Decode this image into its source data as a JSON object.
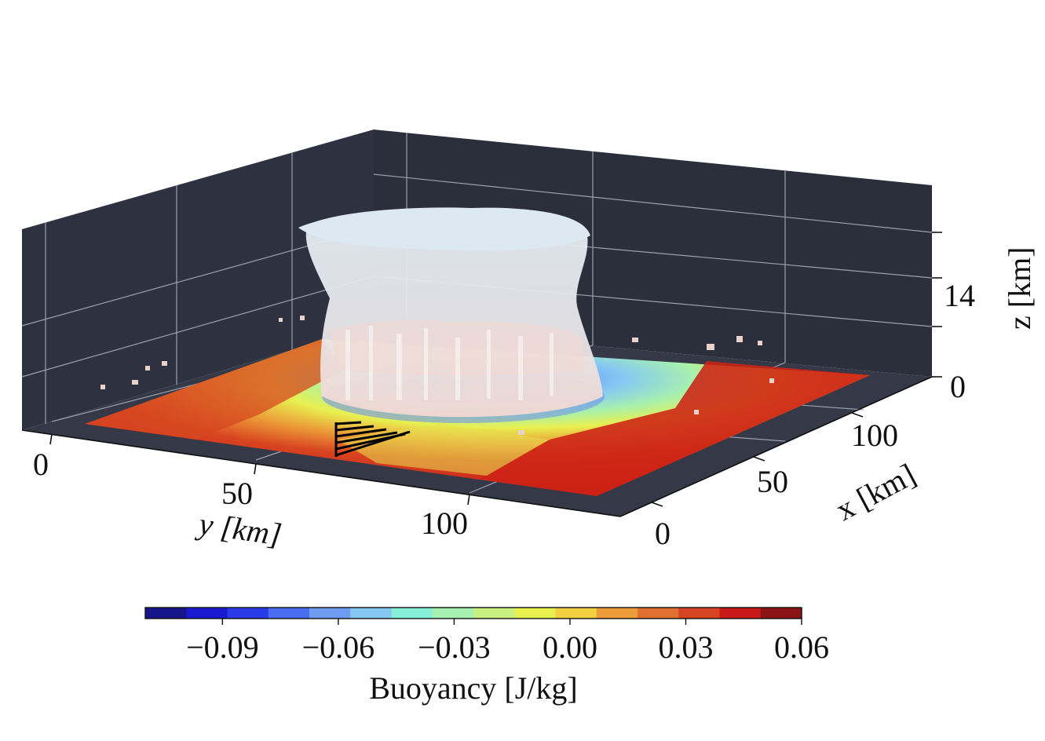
{
  "chart_data": {
    "type": "3d-surface-with-isosurface",
    "x_axis": {
      "label": "x [km]",
      "ticks": [
        0,
        50,
        100
      ]
    },
    "y_axis": {
      "label": "y [km]",
      "ticks": [
        0,
        50,
        100
      ]
    },
    "z_axis": {
      "label": "z [km]",
      "ticks": [
        0,
        14
      ]
    },
    "colorbar": {
      "label": "Buoyancy [J/kg]",
      "tick_values": [
        -0.09,
        -0.06,
        -0.03,
        0.0,
        0.03,
        0.06
      ],
      "tick_labels": [
        "−0.09",
        "−0.06",
        "−0.03",
        "0.00",
        "0.03",
        "0.06"
      ],
      "range": [
        -0.11,
        0.06
      ],
      "colors": [
        "#16168a",
        "#1a1ad0",
        "#2a3ae8",
        "#4a6cf0",
        "#6e9cf2",
        "#86c8f4",
        "#86f0d8",
        "#a6f0b0",
        "#c8f080",
        "#e8f050",
        "#f2d040",
        "#ec9c38",
        "#e07030",
        "#d84420",
        "#c81818",
        "#8c1414"
      ],
      "orientation": "horizontal",
      "placement": "bottom"
    },
    "pane_color": "#2e3240",
    "cloud_color": "#dce8f0",
    "grid": true
  }
}
